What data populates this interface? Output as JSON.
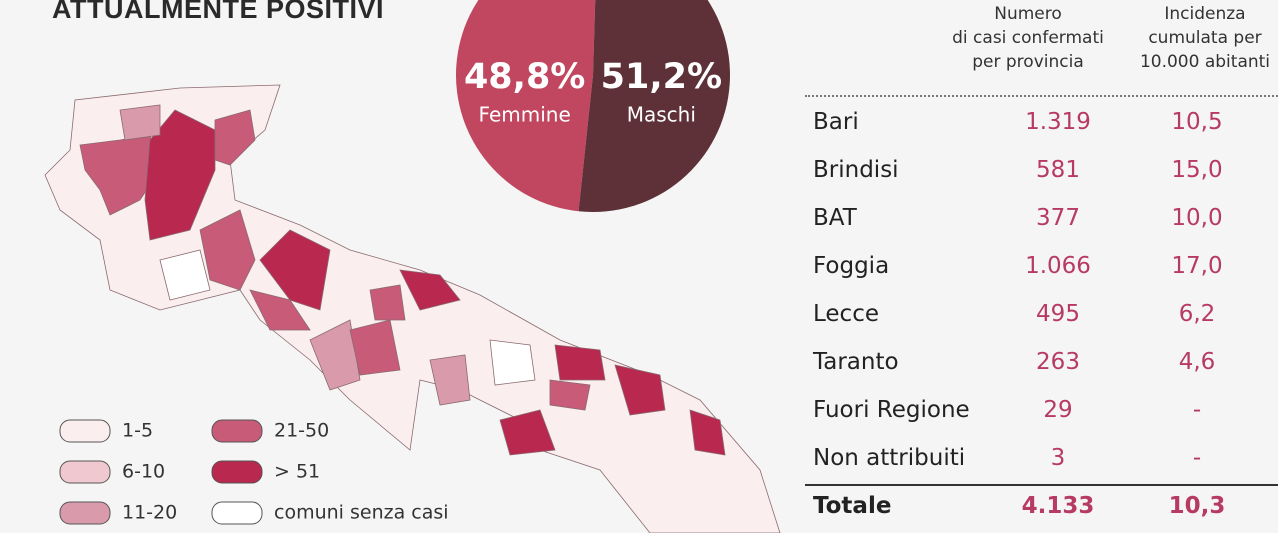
{
  "title": "ATTUALMENTE POSITIVI",
  "chart_data": {
    "type": "pie",
    "categories": [
      "Femmine",
      "Maschi"
    ],
    "values": [
      48.8,
      51.2
    ],
    "value_labels": [
      "48,8%",
      "51,2%"
    ],
    "colors": [
      "#c0475f",
      "#5e3138"
    ]
  },
  "legend": [
    {
      "label": "1-5",
      "color": "#fbeeee"
    },
    {
      "label": "6-10",
      "color": "#f0c9d0"
    },
    {
      "label": "11-20",
      "color": "#d99bac"
    },
    {
      "label": "21-50",
      "color": "#c75b78"
    },
    {
      "label": "> 51",
      "color": "#b9284f"
    },
    {
      "label": "comuni senza casi",
      "color": "#ffffff"
    }
  ],
  "table": {
    "header": [
      [
        "Numero",
        "di casi confermati",
        "per provincia"
      ],
      [
        "Incidenza",
        "cumulata per",
        "10.000 abitanti"
      ]
    ],
    "rows": [
      [
        "Bari",
        "1.319",
        "10,5"
      ],
      [
        "Brindisi",
        "581",
        "15,0"
      ],
      [
        "BAT",
        "377",
        "10,0"
      ],
      [
        "Foggia",
        "1.066",
        "17,0"
      ],
      [
        "Lecce",
        "495",
        "6,2"
      ],
      [
        "Taranto",
        "263",
        "4,6"
      ],
      [
        "Fuori Regione",
        "29",
        "-"
      ],
      [
        "Non attribuiti",
        "3",
        "-"
      ]
    ],
    "total": [
      "Totale",
      "4.133",
      "10,3"
    ]
  }
}
